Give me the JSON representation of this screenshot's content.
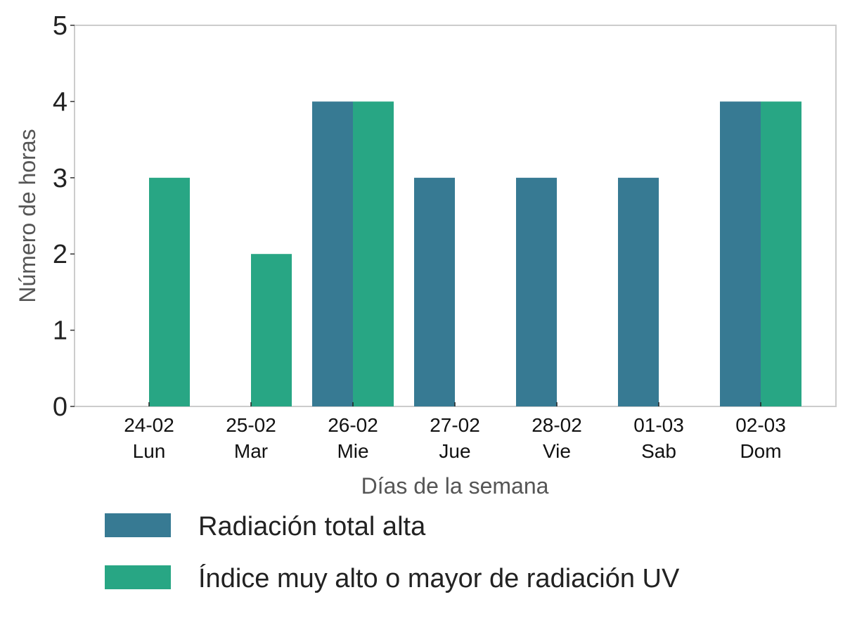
{
  "chart_data": {
    "type": "bar",
    "title": "",
    "xlabel": "Días de la semana",
    "ylabel": "Número de horas",
    "ylim": [
      0,
      5
    ],
    "yticks": [
      0,
      1,
      2,
      3,
      4,
      5
    ],
    "grid": false,
    "legend_position": "bottom",
    "categories": [
      {
        "date": "24-02",
        "day": "Lun"
      },
      {
        "date": "25-02",
        "day": "Mar"
      },
      {
        "date": "26-02",
        "day": "Mie"
      },
      {
        "date": "27-02",
        "day": "Jue"
      },
      {
        "date": "28-02",
        "day": "Vie"
      },
      {
        "date": "01-03",
        "day": "Sab"
      },
      {
        "date": "02-03",
        "day": "Dom"
      }
    ],
    "series": [
      {
        "name": "Radiación total alta",
        "color": "#377a93",
        "values": [
          0,
          0,
          4,
          3,
          3,
          3,
          4
        ]
      },
      {
        "name": "Índice muy alto o mayor de radiación UV",
        "color": "#28a684",
        "values": [
          3,
          2,
          4,
          0,
          0,
          0,
          4
        ]
      }
    ]
  }
}
